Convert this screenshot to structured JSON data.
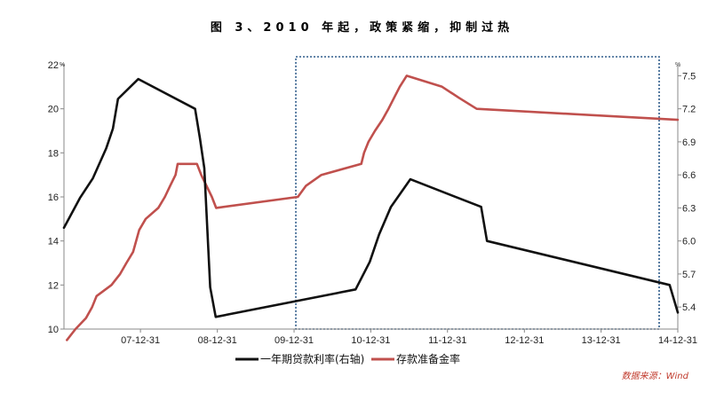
{
  "title": "图 3、2010 年起，政策紧缩，抑制过热",
  "source": "数据来源：Wind",
  "colors": {
    "loan_rate": "#111111",
    "rrr": "#c0504d",
    "highlight": "#2e5b8a",
    "axis": "#888888"
  },
  "chart_data": {
    "type": "line",
    "x_range": [
      "2007-01-01",
      "2014-12-31"
    ],
    "x_ticks": [
      "07-12-31",
      "08-12-31",
      "09-12-31",
      "10-12-31",
      "11-12-31",
      "12-12-31",
      "13-12-31",
      "14-12-31"
    ],
    "x_tick_dates": [
      "2007-12-31",
      "2008-12-31",
      "2009-12-31",
      "2010-12-31",
      "2011-12-31",
      "2012-12-31",
      "2013-12-31",
      "2014-12-31"
    ],
    "y_left": {
      "range": [
        10,
        22
      ],
      "ticks": [
        "10",
        "12",
        "14",
        "16",
        "18",
        "20",
        "22"
      ],
      "unit": "%"
    },
    "y_right": {
      "range": [
        5.2,
        7.6
      ],
      "ticks": [
        "5.4",
        "5.7",
        "6.0",
        "6.3",
        "6.6",
        "6.9",
        "7.2",
        "7.5"
      ],
      "unit": "%"
    },
    "highlight_range": [
      "2009-12-31",
      "2014-12-31"
    ],
    "legend_position": "bottom",
    "series": [
      {
        "name": "一年期贷款利率(右轴)",
        "axis": "right",
        "points": [
          [
            "2007-01-01",
            6.12
          ],
          [
            "2007-03-18",
            6.39
          ],
          [
            "2007-05-19",
            6.57
          ],
          [
            "2007-07-21",
            6.84
          ],
          [
            "2007-08-22",
            7.02
          ],
          [
            "2007-09-15",
            7.29
          ],
          [
            "2007-12-21",
            7.47
          ],
          [
            "2008-09-16",
            7.2
          ],
          [
            "2008-10-09",
            6.93
          ],
          [
            "2008-10-30",
            6.66
          ],
          [
            "2008-11-27",
            5.58
          ],
          [
            "2008-12-23",
            5.31
          ],
          [
            "2010-10-20",
            5.56
          ],
          [
            "2010-12-26",
            5.81
          ],
          [
            "2011-02-09",
            6.06
          ],
          [
            "2011-04-06",
            6.31
          ],
          [
            "2011-07-07",
            6.56
          ],
          [
            "2012-06-08",
            6.31
          ],
          [
            "2012-07-06",
            6.0
          ],
          [
            "2014-11-22",
            5.6
          ],
          [
            "2014-12-31",
            5.35
          ]
        ]
      },
      {
        "name": "存款准备金率",
        "axis": "left",
        "points": [
          [
            "2007-01-15",
            9.5
          ],
          [
            "2007-02-25",
            10.0
          ],
          [
            "2007-04-16",
            10.5
          ],
          [
            "2007-05-15",
            11.0
          ],
          [
            "2007-06-05",
            11.5
          ],
          [
            "2007-08-15",
            12.0
          ],
          [
            "2007-09-25",
            12.5
          ],
          [
            "2007-10-25",
            13.0
          ],
          [
            "2007-11-26",
            13.5
          ],
          [
            "2007-12-25",
            14.5
          ],
          [
            "2008-01-25",
            15.0
          ],
          [
            "2008-03-25",
            15.5
          ],
          [
            "2008-04-25",
            16.0
          ],
          [
            "2008-05-20",
            16.5
          ],
          [
            "2008-06-15",
            17.0
          ],
          [
            "2008-06-25",
            17.5
          ],
          [
            "2008-09-25",
            17.5
          ],
          [
            "2008-10-15",
            17.0
          ],
          [
            "2008-12-05",
            16.0
          ],
          [
            "2008-12-25",
            15.5
          ],
          [
            "2010-01-18",
            16.0
          ],
          [
            "2010-02-25",
            16.5
          ],
          [
            "2010-05-10",
            17.0
          ],
          [
            "2010-11-16",
            17.5
          ],
          [
            "2010-11-29",
            18.0
          ],
          [
            "2010-12-20",
            18.5
          ],
          [
            "2011-01-20",
            19.0
          ],
          [
            "2011-02-24",
            19.5
          ],
          [
            "2011-03-25",
            20.0
          ],
          [
            "2011-04-21",
            20.5
          ],
          [
            "2011-05-18",
            21.0
          ],
          [
            "2011-06-20",
            21.5
          ],
          [
            "2011-12-05",
            21.0
          ],
          [
            "2012-02-24",
            20.5
          ],
          [
            "2012-05-18",
            20.0
          ],
          [
            "2014-12-31",
            19.5
          ]
        ]
      }
    ]
  }
}
